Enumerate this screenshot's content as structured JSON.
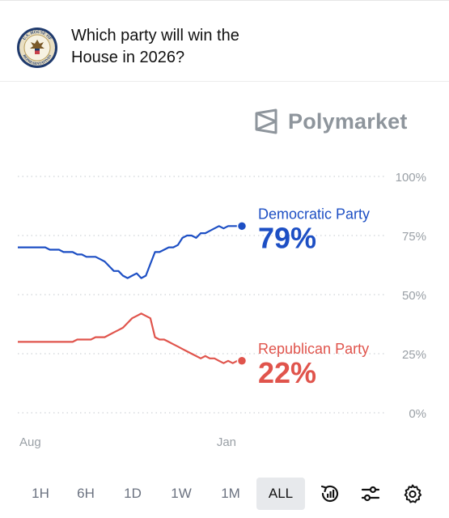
{
  "market": {
    "title_line1": "Which party will win the",
    "title_line2": "House in 2026?",
    "icon": "us-house-seal-icon",
    "seal_text_top": "U.S. HOUSE OF",
    "seal_text_bottom": "REPRESENTATIVES"
  },
  "brand": {
    "name": "Polymarket",
    "icon": "polymarket-logo-icon",
    "color": "#8e959c"
  },
  "chart_data": {
    "type": "line",
    "yticks": [
      "100%",
      "75%",
      "50%",
      "25%",
      "0%"
    ],
    "ylim": [
      0,
      100
    ],
    "xticks": [
      "Aug",
      "Jan"
    ],
    "grid": true,
    "series": [
      {
        "name": "Democratic Party",
        "current": "79%",
        "color": "#1d4fc4",
        "values": [
          70,
          70,
          70,
          70,
          70,
          70,
          70,
          69,
          69,
          69,
          68,
          68,
          68,
          67,
          67,
          66,
          66,
          66,
          65,
          64,
          62,
          60,
          60,
          58,
          57,
          58,
          59,
          57,
          58,
          63,
          68,
          68,
          69,
          70,
          70,
          71,
          74,
          75,
          75,
          74,
          76,
          76,
          77,
          78,
          79,
          78,
          79,
          79,
          79,
          79
        ]
      },
      {
        "name": "Republican Party",
        "current": "22%",
        "color": "#e0544c",
        "values": [
          30,
          30,
          30,
          30,
          30,
          30,
          30,
          30,
          30,
          30,
          30,
          30,
          30,
          31,
          31,
          31,
          31,
          32,
          32,
          32,
          33,
          34,
          35,
          36,
          38,
          40,
          41,
          42,
          41,
          40,
          32,
          31,
          31,
          30,
          29,
          28,
          27,
          26,
          25,
          24,
          23,
          24,
          23,
          23,
          22,
          21,
          22,
          21,
          22,
          22
        ]
      }
    ]
  },
  "timeframes": [
    "1H",
    "6H",
    "1D",
    "1W",
    "1M",
    "ALL"
  ],
  "active_timeframe": "ALL",
  "toolbar_icons": [
    "annotations-icon",
    "filters-icon",
    "settings-icon"
  ]
}
